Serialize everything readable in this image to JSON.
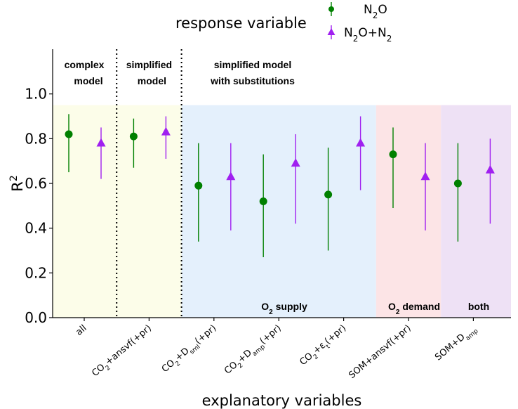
{
  "chart_data": {
    "type": "scatter",
    "subtype": "point-with-interval",
    "categories": [
      {
        "text": "all"
      },
      {
        "text": "CO",
        "sub": "2",
        "tail": "+ansvf(+pr)"
      },
      {
        "text": "CO",
        "sub": "2",
        "tail": "+D",
        "sub2": "sml",
        "tail2": "(+pr)"
      },
      {
        "text": "CO",
        "sub": "2",
        "tail": "+D",
        "sub2": "amp",
        "tail2": "(+pr)"
      },
      {
        "text": "CO",
        "sub": "2",
        "tail": "+ε",
        "sub2": "t",
        "tail2": "(+pr)"
      },
      {
        "text": "SOM+ansvf(+pr)"
      },
      {
        "text": "SOM+D",
        "sub": "amp"
      }
    ],
    "series": [
      {
        "name": "N2O",
        "name_parts": {
          "text": "N",
          "sub": "2",
          "tail": "O"
        },
        "color": "#008000",
        "marker": "circle",
        "values": [
          0.82,
          0.81,
          0.59,
          0.52,
          0.55,
          0.73,
          0.6
        ],
        "lower": [
          0.65,
          0.67,
          0.34,
          0.27,
          0.3,
          0.49,
          0.34
        ],
        "upper": [
          0.91,
          0.89,
          0.78,
          0.73,
          0.76,
          0.85,
          0.78
        ]
      },
      {
        "name": "N2O+N2",
        "name_parts": {
          "text": "N",
          "sub": "2",
          "tail": "O+N",
          "sub2": "2",
          "tail2": ""
        },
        "color": "#A020F0",
        "marker": "triangle",
        "values": [
          0.78,
          0.83,
          0.63,
          0.69,
          0.78,
          0.63,
          0.66
        ],
        "lower": [
          0.62,
          0.71,
          0.39,
          0.42,
          0.57,
          0.39,
          0.42
        ],
        "upper": [
          0.85,
          0.9,
          0.78,
          0.82,
          0.9,
          0.78,
          0.8
        ]
      }
    ],
    "xlabel": "explanatory variables",
    "ylabel": {
      "text": "R",
      "sup": "2"
    },
    "ylim": [
      0.0,
      1.2
    ],
    "yticks": [
      "0.0",
      "0.2",
      "0.4",
      "0.6",
      "0.8",
      "1.0"
    ],
    "legend": {
      "title": "response variable",
      "position": "top"
    },
    "grid": false,
    "group_labels": [
      {
        "lines": [
          "complex",
          "model"
        ],
        "span": [
          0,
          0
        ]
      },
      {
        "lines": [
          "simplified",
          "model"
        ],
        "span": [
          1,
          1
        ]
      },
      {
        "lines": [
          "simplified model",
          "with substitutions"
        ],
        "span": [
          2,
          6
        ]
      }
    ],
    "dividers_after": [
      0,
      1
    ],
    "regions": [
      {
        "span": [
          0,
          1
        ],
        "color": "#FCFDE9",
        "label": null
      },
      {
        "span": [
          2,
          4
        ],
        "color": "#E4F0FC",
        "label": {
          "text": "O",
          "sub": "2",
          "tail": " supply"
        }
      },
      {
        "span": [
          5,
          5
        ],
        "color": "#FCE4E6",
        "label": {
          "text": "O",
          "sub": "2",
          "tail": " demand"
        }
      },
      {
        "span": [
          6,
          6
        ],
        "color": "#EEE1F5",
        "label": {
          "text": "both"
        }
      }
    ],
    "region_top": 0.95
  }
}
